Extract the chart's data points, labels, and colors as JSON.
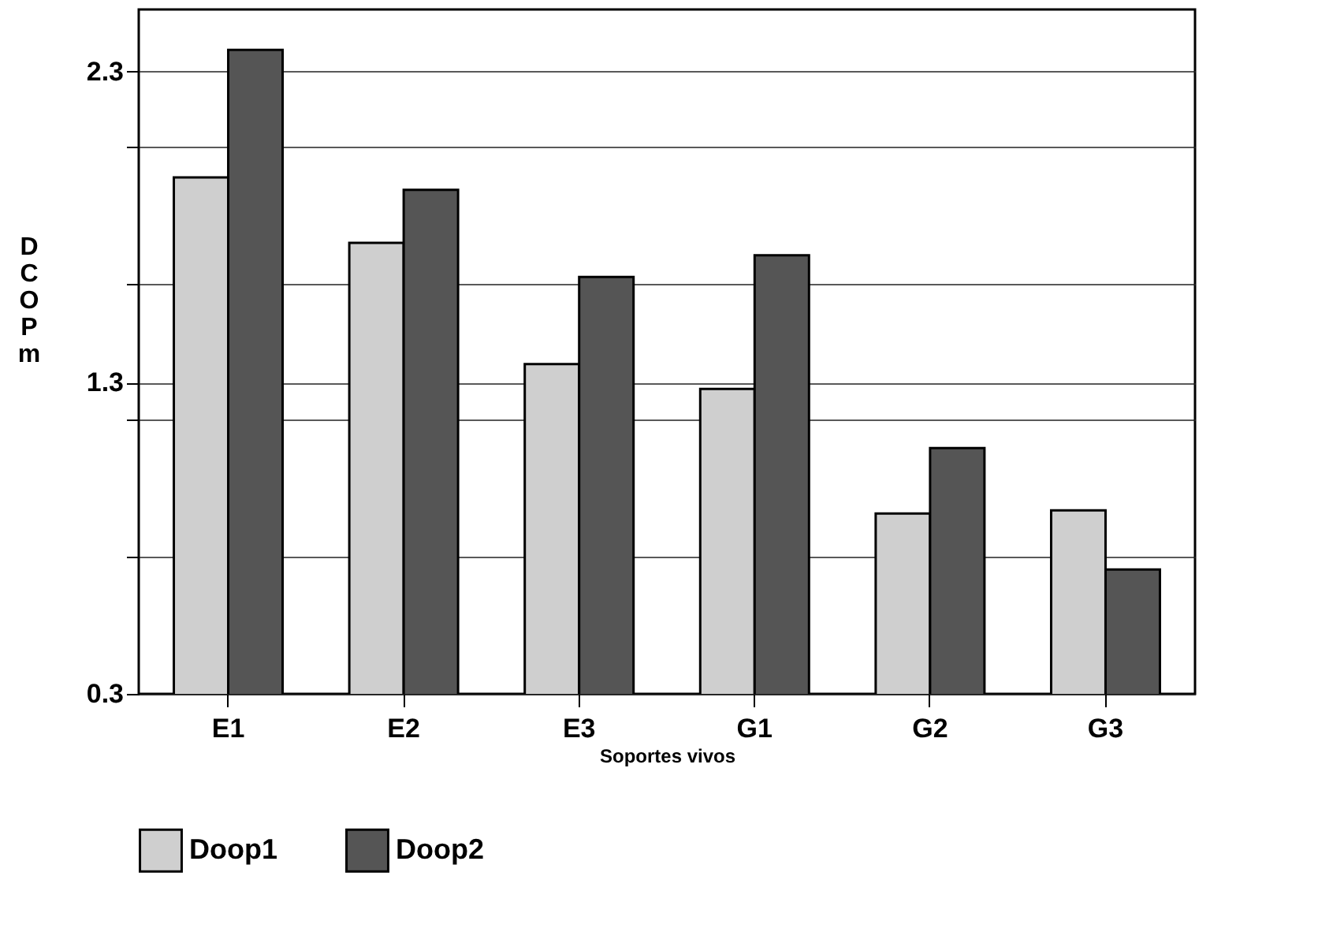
{
  "chart_data": {
    "type": "bar",
    "xlabel": "Soportes vivos",
    "ylabel": "DCOP m",
    "categories": [
      "E1",
      "E2",
      "E3",
      "G1",
      "G2",
      "G3"
    ],
    "series": [
      {
        "name": "Doop1",
        "color": "#cfcfcf",
        "values": [
          1.96,
          1.75,
          1.36,
          1.28,
          0.88,
          0.89
        ]
      },
      {
        "name": "Doop2",
        "color": "#555555",
        "values": [
          2.37,
          1.92,
          1.64,
          1.71,
          1.09,
          0.7
        ]
      }
    ],
    "ylim": [
      0.3,
      2.5
    ],
    "yticks": [
      0.3,
      {
        "value": 0.74,
        "label": null
      },
      {
        "value": 1.18,
        "label": null
      },
      1.3,
      {
        "value": 1.62,
        "label": null
      },
      {
        "value": 2.06,
        "label": null
      },
      2.3
    ],
    "grid": "y",
    "legend": "bottom"
  }
}
